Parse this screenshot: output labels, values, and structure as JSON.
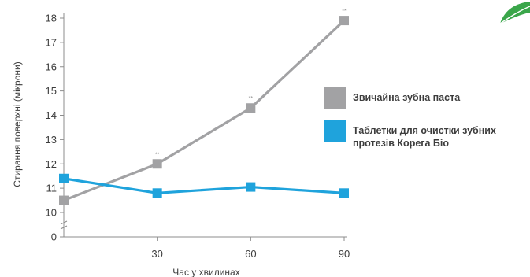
{
  "chart_data": {
    "type": "line",
    "x": [
      0,
      30,
      60,
      90
    ],
    "xticks": [
      "30",
      "60",
      "90"
    ],
    "yticks": [
      "0",
      "10",
      "11",
      "12",
      "13",
      "14",
      "15",
      "16",
      "17",
      "18"
    ],
    "xlabel": "Час у хвилинах",
    "ylabel": "Стирання поверхні (мікрони)",
    "ylim": [
      0,
      18
    ],
    "y_axis_break": true,
    "series": [
      {
        "name": "Звичайна зубна паста",
        "color": "#a2a2a4",
        "values": [
          10.5,
          12.0,
          14.3,
          17.9
        ],
        "markers": [
          "",
          "**",
          "**",
          "**"
        ]
      },
      {
        "name": "Таблетки для очистки зубних протезів Корега Біо",
        "color": "#1fa3dc",
        "values": [
          11.4,
          10.8,
          11.05,
          10.8
        ],
        "markers": [
          "",
          "",
          "",
          ""
        ]
      }
    ],
    "legend_position": "right"
  }
}
